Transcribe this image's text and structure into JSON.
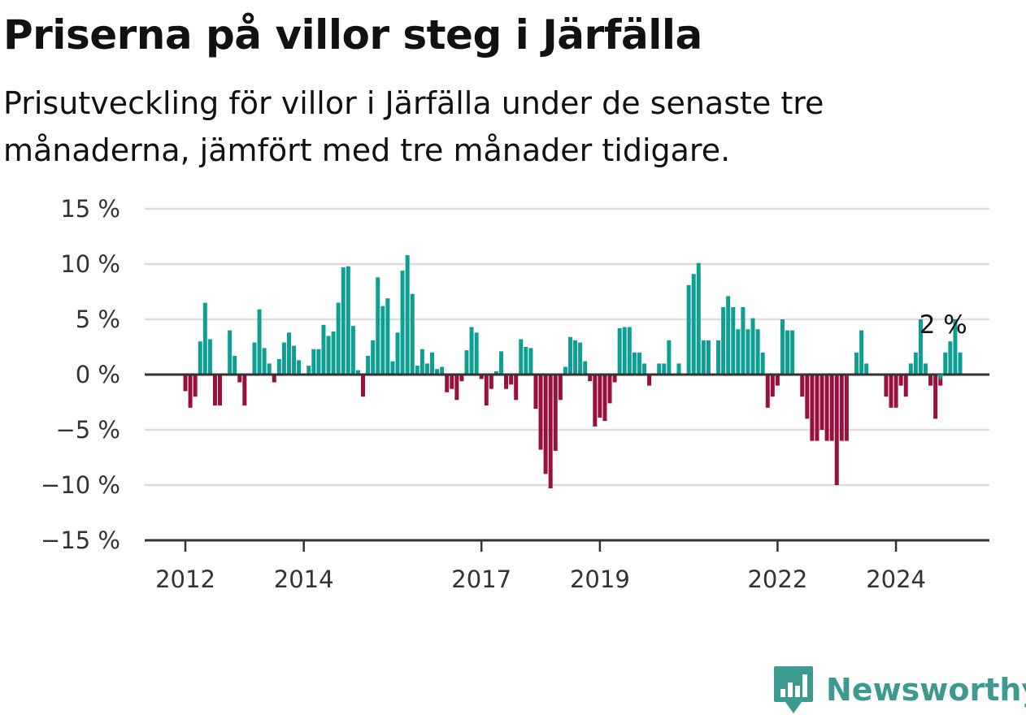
{
  "header": {
    "title": "Priserna på villor steg i Järfälla",
    "subtitle": "Prisutveckling för villor i Järfälla under de senaste tre månaderna, jämfört med tre månader tidigare."
  },
  "logo": {
    "text": "Newsworthy",
    "icon": "newsworthy-bar-chart-icon",
    "color": "#3d9a8e"
  },
  "chart_data": {
    "type": "bar",
    "ylim": [
      -15,
      15
    ],
    "ytick_values": [
      15,
      10,
      5,
      0,
      -5,
      -10,
      -15
    ],
    "ytick_labels": [
      "15 %",
      "10 %",
      "5 %",
      "0 %",
      "−5 %",
      "−10 %",
      "−15 %"
    ],
    "xtick_labels": [
      "2012",
      "2014",
      "2017",
      "2019",
      "2022",
      "2024"
    ],
    "xtick_positions": [
      0,
      24,
      60,
      84,
      120,
      144
    ],
    "grid": true,
    "colors": {
      "positive": "#0e9f93",
      "negative": "#990f3d",
      "grid": "#dddddd",
      "axis": "#333333"
    },
    "annotation": {
      "text": "2 %",
      "value": 2,
      "index": 153
    },
    "values": [
      -1.5,
      -3,
      -2,
      3,
      6.5,
      3.2,
      -2.8,
      -2.8,
      0,
      4,
      1.7,
      -0.7,
      -2.8,
      0,
      2.9,
      5.9,
      2.4,
      1,
      -0.7,
      1.4,
      2.9,
      3.8,
      2.6,
      1.3,
      0,
      0.8,
      2.3,
      2.3,
      4.5,
      3.5,
      3.9,
      6.5,
      9.7,
      9.8,
      4.4,
      0.4,
      -2,
      1.7,
      3.1,
      8.8,
      6.2,
      6.9,
      1.2,
      3.8,
      9.4,
      10.8,
      7.3,
      0.8,
      2.3,
      1,
      2,
      0.5,
      0.7,
      -1.6,
      -1.3,
      -2.3,
      -0.6,
      2.2,
      4.3,
      3.8,
      -0.4,
      -2.8,
      -1.3,
      0.3,
      2.1,
      -1.3,
      -0.9,
      -2.3,
      3.2,
      2.5,
      2.4,
      -3.1,
      -6.8,
      -9,
      -10.3,
      -6.9,
      -2.3,
      0.7,
      3.4,
      3.1,
      2.9,
      1.2,
      -0.6,
      -4.7,
      -3.9,
      -4.2,
      -2.6,
      -0.7,
      4.2,
      4.3,
      4.3,
      2,
      2,
      1,
      -1,
      0,
      1,
      1,
      3.1,
      0,
      1,
      0,
      8.1,
      9.1,
      10.1,
      3.1,
      3.1,
      0,
      3.1,
      6.1,
      7.1,
      6.1,
      4.1,
      6.1,
      4.1,
      5.1,
      4.1,
      2,
      -3,
      -2,
      -1,
      5,
      4,
      4,
      0,
      -2,
      -4,
      -6,
      -6,
      -5,
      -6,
      -6,
      -10,
      -6,
      -6,
      0,
      2,
      4,
      1,
      0,
      0,
      0,
      -2,
      -3,
      -3,
      -1,
      -2,
      1,
      2,
      5,
      1,
      -1,
      -4,
      -1,
      2,
      3,
      5,
      2
    ]
  }
}
